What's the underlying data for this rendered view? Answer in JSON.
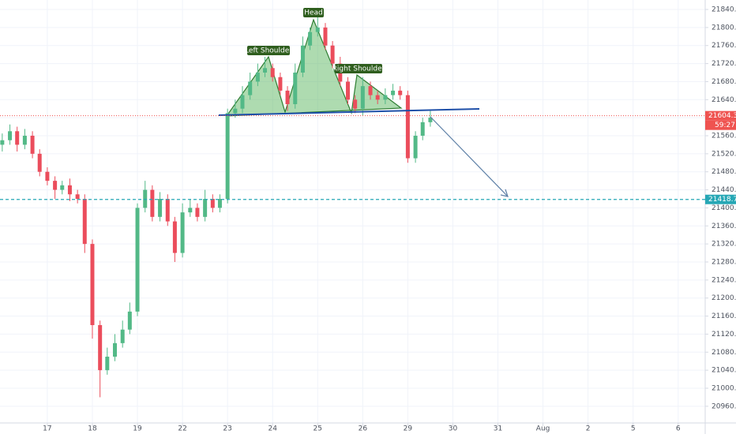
{
  "chart_data": {
    "type": "candlestick",
    "up_color": "#53b987",
    "down_color": "#eb4d5c",
    "grid": true,
    "x": [
      -1,
      -0.83,
      -0.67,
      -0.5,
      -0.33,
      -0.17,
      0,
      0.17,
      0.33,
      0.5,
      0.67,
      0.83,
      1,
      1.17,
      1.33,
      1.5,
      1.67,
      1.83,
      2,
      2.17,
      2.33,
      2.5,
      2.67,
      2.83,
      3,
      3.17,
      3.33,
      3.5,
      3.67,
      3.83,
      4,
      4.17,
      4.33,
      4.5,
      4.67,
      4.83,
      5,
      5.17,
      5.33,
      5.5,
      5.67,
      5.83,
      6,
      6.17,
      6.33,
      6.5,
      6.67,
      6.83,
      7,
      7.17,
      7.33,
      7.5,
      7.67,
      7.83,
      8,
      8.17,
      8.33,
      8.5
    ],
    "open": [
      21540,
      21550,
      21570,
      21540,
      21560,
      21520,
      21480,
      21460,
      21440,
      21450,
      21430,
      21420,
      21320,
      21140,
      21040,
      21070,
      21100,
      21130,
      21170,
      21400,
      21440,
      21380,
      21420,
      21370,
      21300,
      21390,
      21400,
      21380,
      21420,
      21400,
      21420,
      21610,
      21620,
      21650,
      21680,
      21700,
      21710,
      21690,
      21660,
      21630,
      21700,
      21760,
      21790,
      21800,
      21760,
      21720,
      21680,
      21640,
      21620,
      21670,
      21650,
      21640,
      21650,
      21660,
      21650,
      21510,
      21560,
      21590
    ],
    "high": [
      21565,
      21585,
      21580,
      21575,
      21570,
      21530,
      21490,
      21470,
      21460,
      21465,
      21440,
      21430,
      21330,
      21150,
      21090,
      21120,
      21150,
      21190,
      21410,
      21460,
      21450,
      21435,
      21430,
      21380,
      21410,
      21420,
      21410,
      21440,
      21430,
      21430,
      21620,
      21640,
      21670,
      21700,
      21720,
      21735,
      21720,
      21700,
      21670,
      21720,
      21780,
      21800,
      21825,
      21810,
      21770,
      21735,
      21690,
      21650,
      21690,
      21680,
      21660,
      21665,
      21675,
      21670,
      21660,
      21570,
      21600,
      21615
    ],
    "low": [
      21525,
      21540,
      21525,
      21530,
      21510,
      21470,
      21450,
      21420,
      21430,
      21415,
      21410,
      21300,
      21110,
      20980,
      21030,
      21060,
      21090,
      21120,
      21160,
      21390,
      21370,
      21370,
      21360,
      21280,
      21290,
      21380,
      21370,
      21370,
      21390,
      21390,
      21410,
      21600,
      21610,
      21640,
      21670,
      21690,
      21680,
      21650,
      21615,
      21620,
      21690,
      21750,
      21780,
      21750,
      21710,
      21670,
      21630,
      21610,
      21605,
      21640,
      21630,
      21630,
      21640,
      21640,
      21500,
      21500,
      21550,
      21580
    ],
    "close": [
      21550,
      21570,
      21540,
      21560,
      21520,
      21480,
      21460,
      21440,
      21450,
      21430,
      21420,
      21320,
      21140,
      21040,
      21070,
      21100,
      21130,
      21170,
      21400,
      21440,
      21380,
      21420,
      21370,
      21300,
      21390,
      21400,
      21380,
      21420,
      21400,
      21420,
      21610,
      21620,
      21650,
      21680,
      21700,
      21710,
      21690,
      21660,
      21630,
      21700,
      21760,
      21790,
      21800,
      21760,
      21720,
      21680,
      21640,
      21620,
      21670,
      21650,
      21640,
      21650,
      21660,
      21650,
      21510,
      21560,
      21590,
      21600
    ],
    "xlim": [
      -1.05,
      14.6
    ],
    "xticks": [
      {
        "value": 0,
        "label": "17"
      },
      {
        "value": 1,
        "label": "18"
      },
      {
        "value": 2,
        "label": "19"
      },
      {
        "value": 3,
        "label": "22"
      },
      {
        "value": 4,
        "label": "23"
      },
      {
        "value": 5,
        "label": "24"
      },
      {
        "value": 6,
        "label": "25"
      },
      {
        "value": 7,
        "label": "26"
      },
      {
        "value": 8,
        "label": "29"
      },
      {
        "value": 9,
        "label": "30"
      },
      {
        "value": 10,
        "label": "31"
      },
      {
        "value": 11,
        "label": "Aug"
      },
      {
        "value": 12,
        "label": "2"
      },
      {
        "value": 13,
        "label": "5"
      },
      {
        "value": 14,
        "label": "6"
      }
    ],
    "ylim": [
      20923,
      21861
    ],
    "yticks": [
      {
        "value": 20960,
        "label": "20960.0"
      },
      {
        "value": 21000,
        "label": "21000.0"
      },
      {
        "value": 21040,
        "label": "21040.0"
      },
      {
        "value": 21080,
        "label": "21080.0"
      },
      {
        "value": 21120,
        "label": "21120.0"
      },
      {
        "value": 21160,
        "label": "21160.0"
      },
      {
        "value": 21200,
        "label": "21200.0"
      },
      {
        "value": 21240,
        "label": "21240.0"
      },
      {
        "value": 21280,
        "label": "21280.0"
      },
      {
        "value": 21320,
        "label": "21320.0"
      },
      {
        "value": 21360,
        "label": "21360.0"
      },
      {
        "value": 21400,
        "label": "21400.0"
      },
      {
        "value": 21440,
        "label": "21440.0"
      },
      {
        "value": 21480,
        "label": "21480.0"
      },
      {
        "value": 21520,
        "label": "21520.0"
      },
      {
        "value": 21560,
        "label": "21560.0"
      },
      {
        "value": 21600,
        "label": "21600.0"
      },
      {
        "value": 21640,
        "label": "21640.0"
      },
      {
        "value": 21680,
        "label": "21680.0"
      },
      {
        "value": 21720,
        "label": "21720.0"
      },
      {
        "value": 21760,
        "label": "21760.0"
      },
      {
        "value": 21800,
        "label": "21800.0"
      },
      {
        "value": 21840,
        "label": "21840.0"
      }
    ],
    "price_lines": [
      {
        "value": 21604.3,
        "color": "#ef5350"
      },
      {
        "value": 21418.7,
        "color": "#26a7b5"
      }
    ],
    "countdown": "59:27",
    "annotations": {
      "left": "Left Shoulder",
      "head": "Head",
      "right": "Right Shoulder"
    }
  }
}
